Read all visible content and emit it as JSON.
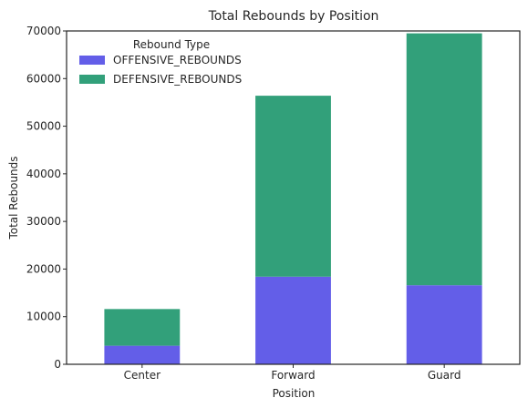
{
  "chart_data": {
    "type": "bar",
    "stacked": true,
    "title": "Total Rebounds by Position",
    "xlabel": "Position",
    "ylabel": "Total Rebounds",
    "categories": [
      "Center",
      "Forward",
      "Guard"
    ],
    "series": [
      {
        "name": "OFFENSIVE_REBOUNDS",
        "values": [
          3900,
          18400,
          16600
        ],
        "color": "#635ee8"
      },
      {
        "name": "DEFENSIVE_REBOUNDS",
        "values": [
          7700,
          38000,
          52900
        ],
        "color": "#32a07a"
      }
    ],
    "ylim": [
      0,
      70000
    ],
    "yticks": [
      0,
      10000,
      20000,
      30000,
      40000,
      50000,
      60000,
      70000
    ],
    "legend": {
      "title": "Rebound Type",
      "placement": "top-left"
    },
    "grid": false
  }
}
